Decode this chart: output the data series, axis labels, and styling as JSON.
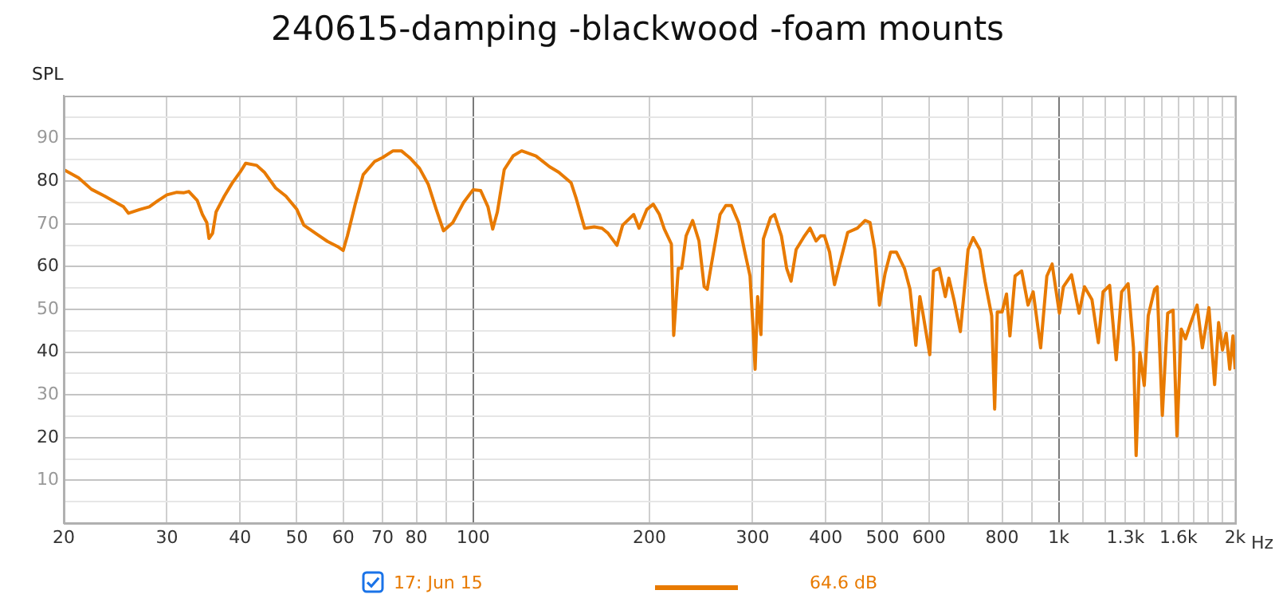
{
  "chart_data": {
    "type": "line",
    "title": "240615-damping -blackwood -foam mounts",
    "ylabel": "SPL",
    "log": "x",
    "xlim": [
      20,
      2000
    ],
    "ylim": [
      0,
      100
    ],
    "xticks": [
      20,
      30,
      40,
      50,
      60,
      70,
      80,
      {
        "value": 90,
        "label": null
      },
      100,
      200,
      300,
      400,
      500,
      600,
      {
        "value": 700,
        "label": null
      },
      800,
      {
        "value": 900,
        "label": null
      },
      {
        "value": 1000,
        "label": "1k"
      },
      {
        "value": 1100,
        "label": null
      },
      {
        "value": 1200,
        "label": null
      },
      {
        "value": 1300,
        "label": "1.3k"
      },
      {
        "value": 1400,
        "label": null
      },
      {
        "value": 1500,
        "label": null
      },
      {
        "value": 1600,
        "label": "1.6k"
      },
      {
        "value": 1700,
        "label": null
      },
      {
        "value": 1800,
        "label": null
      },
      {
        "value": 1900,
        "label": null
      },
      {
        "value": 2000,
        "label": "2k"
      }
    ],
    "xlabel": "Hz",
    "yticks": [
      {
        "value": 5,
        "label": null
      },
      10,
      {
        "value": 15,
        "label": null
      },
      20,
      {
        "value": 25,
        "label": null
      },
      30,
      {
        "value": 35,
        "label": null
      },
      40,
      {
        "value": 45,
        "label": null
      },
      50,
      {
        "value": 55,
        "label": null
      },
      60,
      {
        "value": 65,
        "label": null
      },
      70,
      {
        "value": 75,
        "label": null
      },
      80,
      {
        "value": 85,
        "label": null
      },
      90,
      {
        "value": 95,
        "label": null
      }
    ],
    "grid": true,
    "legend": "bottom",
    "marker": "none",
    "line_style": "solid",
    "annotations": [
      "64.6 dB"
    ],
    "series": [
      {
        "name": "17: Jun 15",
        "color": "#e87a00",
        "x": [
          20,
          21.2,
          22.3,
          23.5,
          25.3,
          25.8,
          27,
          28,
          29,
          30,
          31.2,
          32.1,
          32.7,
          33.8,
          34.5,
          35.1,
          35.4,
          35.9,
          36.4,
          37.6,
          38.8,
          40,
          40.9,
          42.7,
          44,
          46,
          47.9,
          50,
          51.4,
          54.2,
          56.4,
          58.7,
          60,
          61,
          62.9,
          64.9,
          67.9,
          70,
          73,
          75.4,
          77.9,
          81,
          83.8,
          86.5,
          89,
          92.3,
          96.3,
          100,
          103,
          106,
          108,
          110,
          113,
          117,
          121,
          128,
          135,
          140,
          147,
          150,
          155,
          161,
          166,
          170,
          176,
          180,
          188,
          192,
          198,
          203,
          208,
          212,
          218,
          220,
          224,
          227,
          231,
          237,
          243,
          248,
          251,
          255,
          264,
          270,
          276,
          284,
          291,
          297,
          301,
          303,
          306,
          310,
          313,
          322,
          327,
          336,
          343,
          349,
          356,
          368,
          376,
          385,
          392,
          398,
          406,
          414,
          425,
          436,
          453,
          467,
          476,
          485,
          494,
          505,
          516,
          528,
          545,
          557,
          570,
          579,
          586,
          602,
          611,
          625,
          640,
          649,
          662,
          679,
          700,
          714,
          733,
          748,
          768,
          777,
          785,
          800,
          814,
          825,
          842,
          864,
          886,
          904,
          931,
          954,
          974,
          1002,
          1018,
          1051,
          1083,
          1106,
          1139,
          1168,
          1190,
          1221,
          1253,
          1280,
          1313,
          1341,
          1355,
          1375,
          1399,
          1421,
          1457,
          1472,
          1502,
          1534,
          1567,
          1591,
          1618,
          1645,
          1680,
          1722,
          1758,
          1804,
          1845,
          1874,
          1903,
          1931,
          1958,
          1983,
          2000
        ],
        "values": [
          82.7,
          80.8,
          78.1,
          76.5,
          74,
          72.5,
          73.4,
          74,
          75.5,
          76.8,
          77.4,
          77.3,
          77.6,
          75.5,
          72.2,
          70.3,
          66.6,
          67.8,
          72.8,
          76.5,
          79.6,
          82.1,
          84.2,
          83.7,
          82.1,
          78.4,
          76.5,
          73.4,
          69.7,
          67.5,
          65.9,
          64.7,
          63.8,
          67.2,
          74.6,
          81.5,
          84.6,
          85.5,
          87.1,
          87.1,
          85.5,
          83,
          79.3,
          73.4,
          68.4,
          70.3,
          75,
          78,
          77.8,
          74,
          68.8,
          72.8,
          82.7,
          85.9,
          87.1,
          85.9,
          83.4,
          82.1,
          79.6,
          75.9,
          69,
          69.3,
          69,
          67.8,
          65,
          69.7,
          72.2,
          69,
          73.4,
          74.6,
          72.2,
          68.8,
          65.3,
          43.9,
          59.6,
          59.6,
          67.2,
          70.8,
          66,
          55.3,
          54.7,
          60.3,
          72.2,
          74.3,
          74.3,
          70.3,
          63.4,
          57.8,
          44.1,
          36,
          53,
          44.1,
          66.5,
          71.5,
          72.2,
          67.2,
          59.6,
          56.6,
          64,
          67.2,
          69,
          66,
          67.2,
          67.2,
          63.4,
          55.8,
          62,
          68,
          69,
          70.8,
          70.3,
          64,
          51,
          58.4,
          63.4,
          63.4,
          59.6,
          54.7,
          41.6,
          53,
          49.1,
          39.4,
          59,
          59.6,
          53,
          57.3,
          52.3,
          44.8,
          64,
          66.8,
          64,
          56.6,
          48.5,
          26.7,
          49.4,
          49.4,
          53.6,
          43.8,
          57.8,
          59,
          51,
          54.1,
          41,
          57.8,
          60.6,
          49.1,
          55.3,
          58.1,
          49.1,
          55.3,
          52.3,
          42.2,
          54.1,
          55.6,
          38.2,
          54.1,
          56,
          41,
          15.8,
          39.9,
          32.2,
          48.5,
          54.7,
          55.3,
          25.2,
          49.1,
          49.8,
          20.4,
          45.4,
          43.1,
          46.9,
          51,
          41,
          50.4,
          32.4,
          46.9,
          40.5,
          44.4,
          36,
          43.8,
          36
        ]
      }
    ]
  }
}
